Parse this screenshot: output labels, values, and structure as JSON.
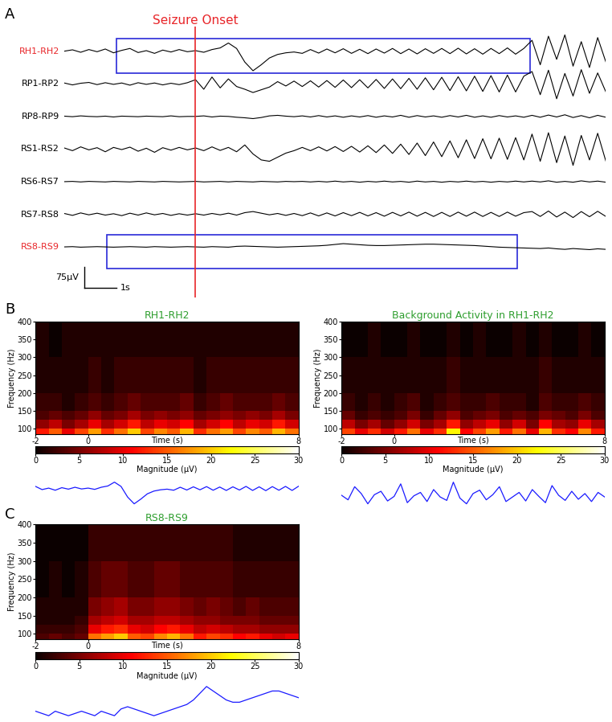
{
  "chart_data": [
    {
      "type": "line",
      "label": "A",
      "annotation": "Seizure Onset",
      "onset": 0,
      "tick_labels": false,
      "xlim": [
        -4.0,
        12.5
      ],
      "scale_bar": {
        "amplitude": 75,
        "amplitude_label": "75µV",
        "time": 1,
        "time_label": "1s"
      },
      "x": [
        -4.0,
        -3.75,
        -3.5,
        -3.25,
        -3.0,
        -2.75,
        -2.5,
        -2.25,
        -2.0,
        -1.75,
        -1.5,
        -1.25,
        -1.0,
        -0.75,
        -0.5,
        -0.25,
        0,
        0.25,
        0.5,
        0.75,
        1.0,
        1.25,
        1.5,
        1.75,
        2.0,
        2.25,
        2.5,
        2.75,
        3.0,
        3.25,
        3.5,
        3.75,
        4.0,
        4.25,
        4.5,
        4.75,
        5.0,
        5.25,
        5.5,
        5.75,
        6.0,
        6.25,
        6.5,
        6.75,
        7.0,
        7.25,
        7.5,
        7.75,
        8.0,
        8.25,
        8.5,
        8.75,
        9.0,
        9.25,
        9.5,
        9.75,
        10.0,
        10.25,
        10.5,
        10.75,
        11.0,
        11.25,
        11.5,
        11.75,
        12.0,
        12.25,
        12.5
      ],
      "series": [
        {
          "name": "RH1-RH2",
          "color": "#000000",
          "highlight": [
            -2.4,
            10.2
          ],
          "values": [
            0,
            5,
            -4,
            6,
            -2,
            8,
            -6,
            3,
            10,
            -5,
            2,
            -8,
            4,
            -3,
            6,
            -2,
            2,
            -4,
            6,
            12,
            30,
            10,
            -40,
            -72,
            -50,
            -25,
            -12,
            -6,
            -3,
            -8,
            6,
            -7,
            8,
            -6,
            9,
            -8,
            7,
            -9,
            8,
            -7,
            10,
            -9,
            8,
            -10,
            9,
            -8,
            10,
            -9,
            11,
            -10,
            9,
            -11,
            10,
            -9,
            12,
            -11,
            10,
            40,
            -50,
            55,
            -30,
            60,
            -55,
            35,
            -60,
            50,
            -40
          ]
        },
        {
          "name": "RP1-RP2",
          "color": "#000000",
          "values": [
            3,
            -4,
            2,
            5,
            -3,
            4,
            -2,
            3,
            -5,
            4,
            -2,
            3,
            -4,
            2,
            -3,
            4,
            15,
            -20,
            25,
            -15,
            18,
            -10,
            -20,
            -32,
            -22,
            -12,
            8,
            -8,
            10,
            -10,
            11,
            -12,
            12,
            -13,
            14,
            -14,
            15,
            -15,
            16,
            -17,
            18,
            -18,
            20,
            -20,
            22,
            -22,
            24,
            -25,
            26,
            -26,
            28,
            -28,
            30,
            -30,
            32,
            -30,
            28,
            45,
            -40,
            50,
            -55,
            38,
            -45,
            52,
            -35,
            40,
            -30
          ]
        },
        {
          "name": "RP8-RP9",
          "color": "#000000",
          "values": [
            1,
            -1,
            2,
            0,
            -1,
            1,
            -2,
            1,
            0,
            -1,
            1,
            0,
            -1,
            2,
            -1,
            0,
            0,
            2,
            -2,
            1,
            0,
            -3,
            -5,
            -8,
            -4,
            2,
            4,
            1,
            -1,
            2,
            -2,
            3,
            -2,
            2,
            -3,
            2,
            -2,
            3,
            -3,
            2,
            -2,
            4,
            -3,
            3,
            -2,
            2,
            -3,
            3,
            -2,
            4,
            -3,
            2,
            -3,
            3,
            -2,
            2,
            -3,
            4,
            -3,
            5,
            -2,
            6,
            -4,
            3,
            -5,
            4,
            -3
          ]
        },
        {
          "name": "RS1-RS2",
          "color": "#000000",
          "values": [
            4,
            -6,
            8,
            -3,
            5,
            -10,
            6,
            -2,
            7,
            -8,
            3,
            -12,
            5,
            -4,
            6,
            -3,
            4,
            -6,
            8,
            -5,
            6,
            -10,
            15,
            -18,
            -40,
            -45,
            -30,
            -15,
            -6,
            6,
            -6,
            8,
            -7,
            9,
            -9,
            10,
            -11,
            12,
            -13,
            15,
            -16,
            18,
            -20,
            22,
            -24,
            26,
            -28,
            30,
            -32,
            34,
            -35,
            38,
            -36,
            40,
            -38,
            42,
            -40,
            55,
            -45,
            60,
            -50,
            48,
            -60,
            50,
            -40,
            58,
            -45
          ]
        },
        {
          "name": "RS6-RS7",
          "color": "#000000",
          "values": [
            0,
            1,
            -1,
            1,
            0,
            -1,
            1,
            0,
            -1,
            1,
            0,
            -1,
            1,
            0,
            -1,
            0,
            1,
            -1,
            0,
            1,
            -1,
            1,
            0,
            -1,
            1,
            0,
            -1,
            1,
            0,
            1,
            -1,
            1,
            -1,
            2,
            -1,
            1,
            -2,
            1,
            -1,
            2,
            -1,
            1,
            -2,
            2,
            -1,
            1,
            -2,
            1,
            -1,
            2,
            -1,
            1,
            -2,
            1,
            -1,
            2,
            -1,
            2,
            -1,
            3,
            -2,
            1,
            -2,
            3,
            -1,
            2,
            -2
          ]
        },
        {
          "name": "RS7-RS8",
          "color": "#000000",
          "values": [
            3,
            -4,
            5,
            -2,
            4,
            -3,
            2,
            -5,
            4,
            -3,
            5,
            -2,
            3,
            -4,
            2,
            -3,
            2,
            -3,
            3,
            -2,
            4,
            -3,
            6,
            10,
            4,
            -2,
            3,
            -4,
            3,
            -5,
            5,
            -6,
            5,
            -6,
            6,
            -5,
            7,
            -6,
            6,
            -7,
            7,
            -6,
            8,
            -7,
            7,
            -8,
            7,
            -8,
            8,
            -7,
            8,
            -8,
            7,
            -8,
            8,
            -7,
            6,
            10,
            -8,
            12,
            -10,
            8,
            -12,
            10,
            -9,
            11,
            -8
          ]
        },
        {
          "name": "RS8-RS9",
          "color": "#000000",
          "highlight": [
            -2.7,
            9.8
          ],
          "values": [
            0,
            1,
            -1,
            0,
            1,
            0,
            -1,
            0,
            1,
            0,
            -1,
            1,
            0,
            -1,
            0,
            1,
            0,
            -1,
            1,
            0,
            -1,
            2,
            3,
            2,
            1,
            0,
            -1,
            0,
            1,
            2,
            3,
            4,
            6,
            9,
            12,
            10,
            8,
            6,
            5,
            5,
            6,
            7,
            8,
            9,
            10,
            10,
            9,
            8,
            7,
            6,
            5,
            3,
            1,
            -1,
            -2,
            -3,
            -4,
            -5,
            -6,
            -4,
            -7,
            -9,
            -6,
            -8,
            -10,
            -7,
            -9
          ]
        }
      ]
    },
    {
      "type": "heatmap",
      "label": "B",
      "title": "RH1-RH2",
      "xlabel": "Time (s)",
      "ylabel": "Frequency (Hz)",
      "xlim": [
        -2,
        8
      ],
      "xticks": [
        -2,
        0,
        8
      ],
      "ylim": [
        85,
        400
      ],
      "yticks": [
        100,
        150,
        200,
        250,
        300,
        350,
        400
      ],
      "time_edges": [
        -2,
        -1.5,
        -1,
        -0.5,
        0,
        0.5,
        1,
        1.5,
        2,
        2.5,
        3,
        3.5,
        4,
        4.5,
        5,
        5.5,
        6,
        6.5,
        7,
        7.5,
        8
      ],
      "freq_edges": [
        85,
        100,
        125,
        150,
        200,
        300,
        400
      ],
      "cells": [
        [
          12,
          15,
          10,
          14,
          18,
          13,
          16,
          20,
          14,
          17,
          15,
          19,
          13,
          16,
          18,
          14,
          17,
          15,
          19,
          16
        ],
        [
          6,
          8,
          5,
          7,
          10,
          7,
          9,
          12,
          8,
          10,
          9,
          11,
          7,
          9,
          11,
          8,
          10,
          9,
          12,
          9
        ],
        [
          3,
          4,
          3,
          4,
          6,
          4,
          5,
          7,
          5,
          6,
          5,
          6,
          4,
          5,
          6,
          5,
          6,
          5,
          7,
          5
        ],
        [
          2,
          2,
          1,
          2,
          3,
          2,
          3,
          4,
          3,
          3,
          3,
          4,
          2,
          3,
          4,
          3,
          3,
          3,
          4,
          3
        ],
        [
          1,
          1,
          1,
          1,
          2,
          1,
          2,
          2,
          2,
          2,
          2,
          2,
          1,
          2,
          2,
          2,
          2,
          2,
          2,
          2
        ],
        [
          1,
          0,
          1,
          1,
          1,
          1,
          1,
          1,
          1,
          1,
          1,
          1,
          1,
          1,
          1,
          1,
          1,
          1,
          1,
          1
        ]
      ],
      "colorbar": {
        "label": "Magnitude (µV)",
        "range": [
          0,
          30
        ],
        "ticks": [
          0,
          5,
          10,
          15,
          20,
          25,
          30
        ]
      },
      "signal": {
        "channel": "RH1-RH2"
      }
    },
    {
      "type": "heatmap",
      "title": "Background Activity in RH1-RH2",
      "xlabel": "Time (s)",
      "ylabel": "Frequency (Hz)",
      "xlim": [
        -2,
        8
      ],
      "xticks": [
        -2,
        0,
        8
      ],
      "ylim": [
        85,
        400
      ],
      "yticks": [
        100,
        150,
        200,
        250,
        300,
        350,
        400
      ],
      "time_edges": [
        -2,
        -1.5,
        -1,
        -0.5,
        0,
        0.5,
        1,
        1.5,
        2,
        2.5,
        3,
        3.5,
        4,
        4.5,
        5,
        5.5,
        6,
        6.5,
        7,
        7.5,
        8
      ],
      "freq_edges": [
        85,
        100,
        125,
        150,
        200,
        300,
        400
      ],
      "cells": [
        [
          14,
          10,
          13,
          9,
          12,
          16,
          10,
          13,
          22,
          11,
          14,
          18,
          12,
          16,
          10,
          19,
          13,
          11,
          17,
          12
        ],
        [
          8,
          5,
          7,
          4,
          6,
          9,
          5,
          7,
          12,
          6,
          8,
          10,
          6,
          9,
          5,
          11,
          7,
          6,
          10,
          7
        ],
        [
          4,
          2,
          3,
          2,
          3,
          5,
          2,
          4,
          6,
          3,
          4,
          5,
          3,
          4,
          3,
          5,
          4,
          3,
          5,
          3
        ],
        [
          2,
          1,
          2,
          1,
          2,
          3,
          1,
          2,
          3,
          2,
          2,
          3,
          2,
          2,
          1,
          3,
          2,
          2,
          3,
          2
        ],
        [
          1,
          1,
          1,
          1,
          1,
          1,
          1,
          1,
          2,
          1,
          1,
          1,
          1,
          1,
          1,
          2,
          1,
          1,
          1,
          1
        ],
        [
          0,
          0,
          1,
          0,
          0,
          1,
          0,
          0,
          1,
          0,
          1,
          0,
          0,
          1,
          0,
          1,
          0,
          0,
          1,
          0
        ]
      ],
      "colorbar": {
        "label": "Magnitude (µV)",
        "range": [
          0,
          30
        ],
        "ticks": [
          0,
          5,
          10,
          15,
          20,
          25,
          30
        ]
      },
      "signal": {
        "x": [
          -2.0,
          -1.75,
          -1.5,
          -1.25,
          -1.0,
          -0.75,
          -0.5,
          -0.25,
          0,
          0.25,
          0.5,
          0.75,
          1.0,
          1.25,
          1.5,
          1.75,
          2.0,
          2.25,
          2.5,
          2.75,
          3.0,
          3.25,
          3.5,
          3.75,
          4.0,
          4.25,
          4.5,
          4.75,
          5.0,
          5.25,
          5.5,
          5.75,
          6.0,
          6.25,
          6.5,
          6.75,
          7.0,
          7.25,
          7.5,
          7.75,
          8.0
        ],
        "values": [
          5,
          -3,
          20,
          8,
          -10,
          6,
          12,
          -5,
          3,
          25,
          -8,
          4,
          10,
          -6,
          15,
          2,
          -4,
          28,
          0,
          -10,
          8,
          14,
          -3,
          6,
          20,
          -6,
          2,
          10,
          -5,
          15,
          3,
          -8,
          22,
          5,
          -4,
          12,
          -2,
          8,
          -6,
          10,
          2
        ]
      }
    },
    {
      "type": "heatmap",
      "label": "C",
      "title": "RS8-RS9",
      "xlabel": "Time (s)",
      "ylabel": "Frequency (Hz)",
      "xlim": [
        -2,
        8
      ],
      "xticks": [
        -2,
        0,
        8
      ],
      "ylim": [
        85,
        400
      ],
      "yticks": [
        100,
        150,
        200,
        250,
        300,
        350,
        400
      ],
      "time_edges": [
        -2,
        -1.5,
        -1,
        -0.5,
        0,
        0.5,
        1,
        1.5,
        2,
        2.5,
        3,
        3.5,
        4,
        4.5,
        5,
        5.5,
        6,
        6.5,
        7,
        7.5,
        8
      ],
      "freq_edges": [
        85,
        100,
        125,
        150,
        200,
        300,
        400
      ],
      "cells": [
        [
          3,
          4,
          3,
          4,
          16,
          18,
          20,
          15,
          14,
          17,
          19,
          16,
          12,
          14,
          13,
          11,
          12,
          10,
          9,
          10
        ],
        [
          2,
          2,
          2,
          3,
          10,
          12,
          13,
          10,
          9,
          11,
          12,
          10,
          8,
          9,
          8,
          7,
          7,
          6,
          6,
          6
        ],
        [
          1,
          1,
          1,
          2,
          7,
          8,
          9,
          7,
          7,
          8,
          8,
          7,
          6,
          6,
          5,
          5,
          5,
          4,
          4,
          4
        ],
        [
          1,
          1,
          1,
          1,
          5,
          6,
          7,
          5,
          5,
          6,
          6,
          5,
          4,
          5,
          4,
          3,
          4,
          3,
          3,
          3
        ],
        [
          0,
          1,
          0,
          1,
          3,
          4,
          4,
          3,
          3,
          4,
          4,
          3,
          3,
          3,
          3,
          2,
          2,
          2,
          2,
          2
        ],
        [
          0,
          0,
          0,
          0,
          2,
          2,
          2,
          2,
          2,
          2,
          2,
          2,
          2,
          2,
          2,
          1,
          1,
          1,
          1,
          1
        ]
      ],
      "colorbar": {
        "label": "Magnitude (µV)",
        "range": [
          0,
          30
        ],
        "ticks": [
          0,
          5,
          10,
          15,
          20,
          25,
          30
        ]
      },
      "signal": {
        "channel": "RS8-RS9"
      }
    }
  ]
}
